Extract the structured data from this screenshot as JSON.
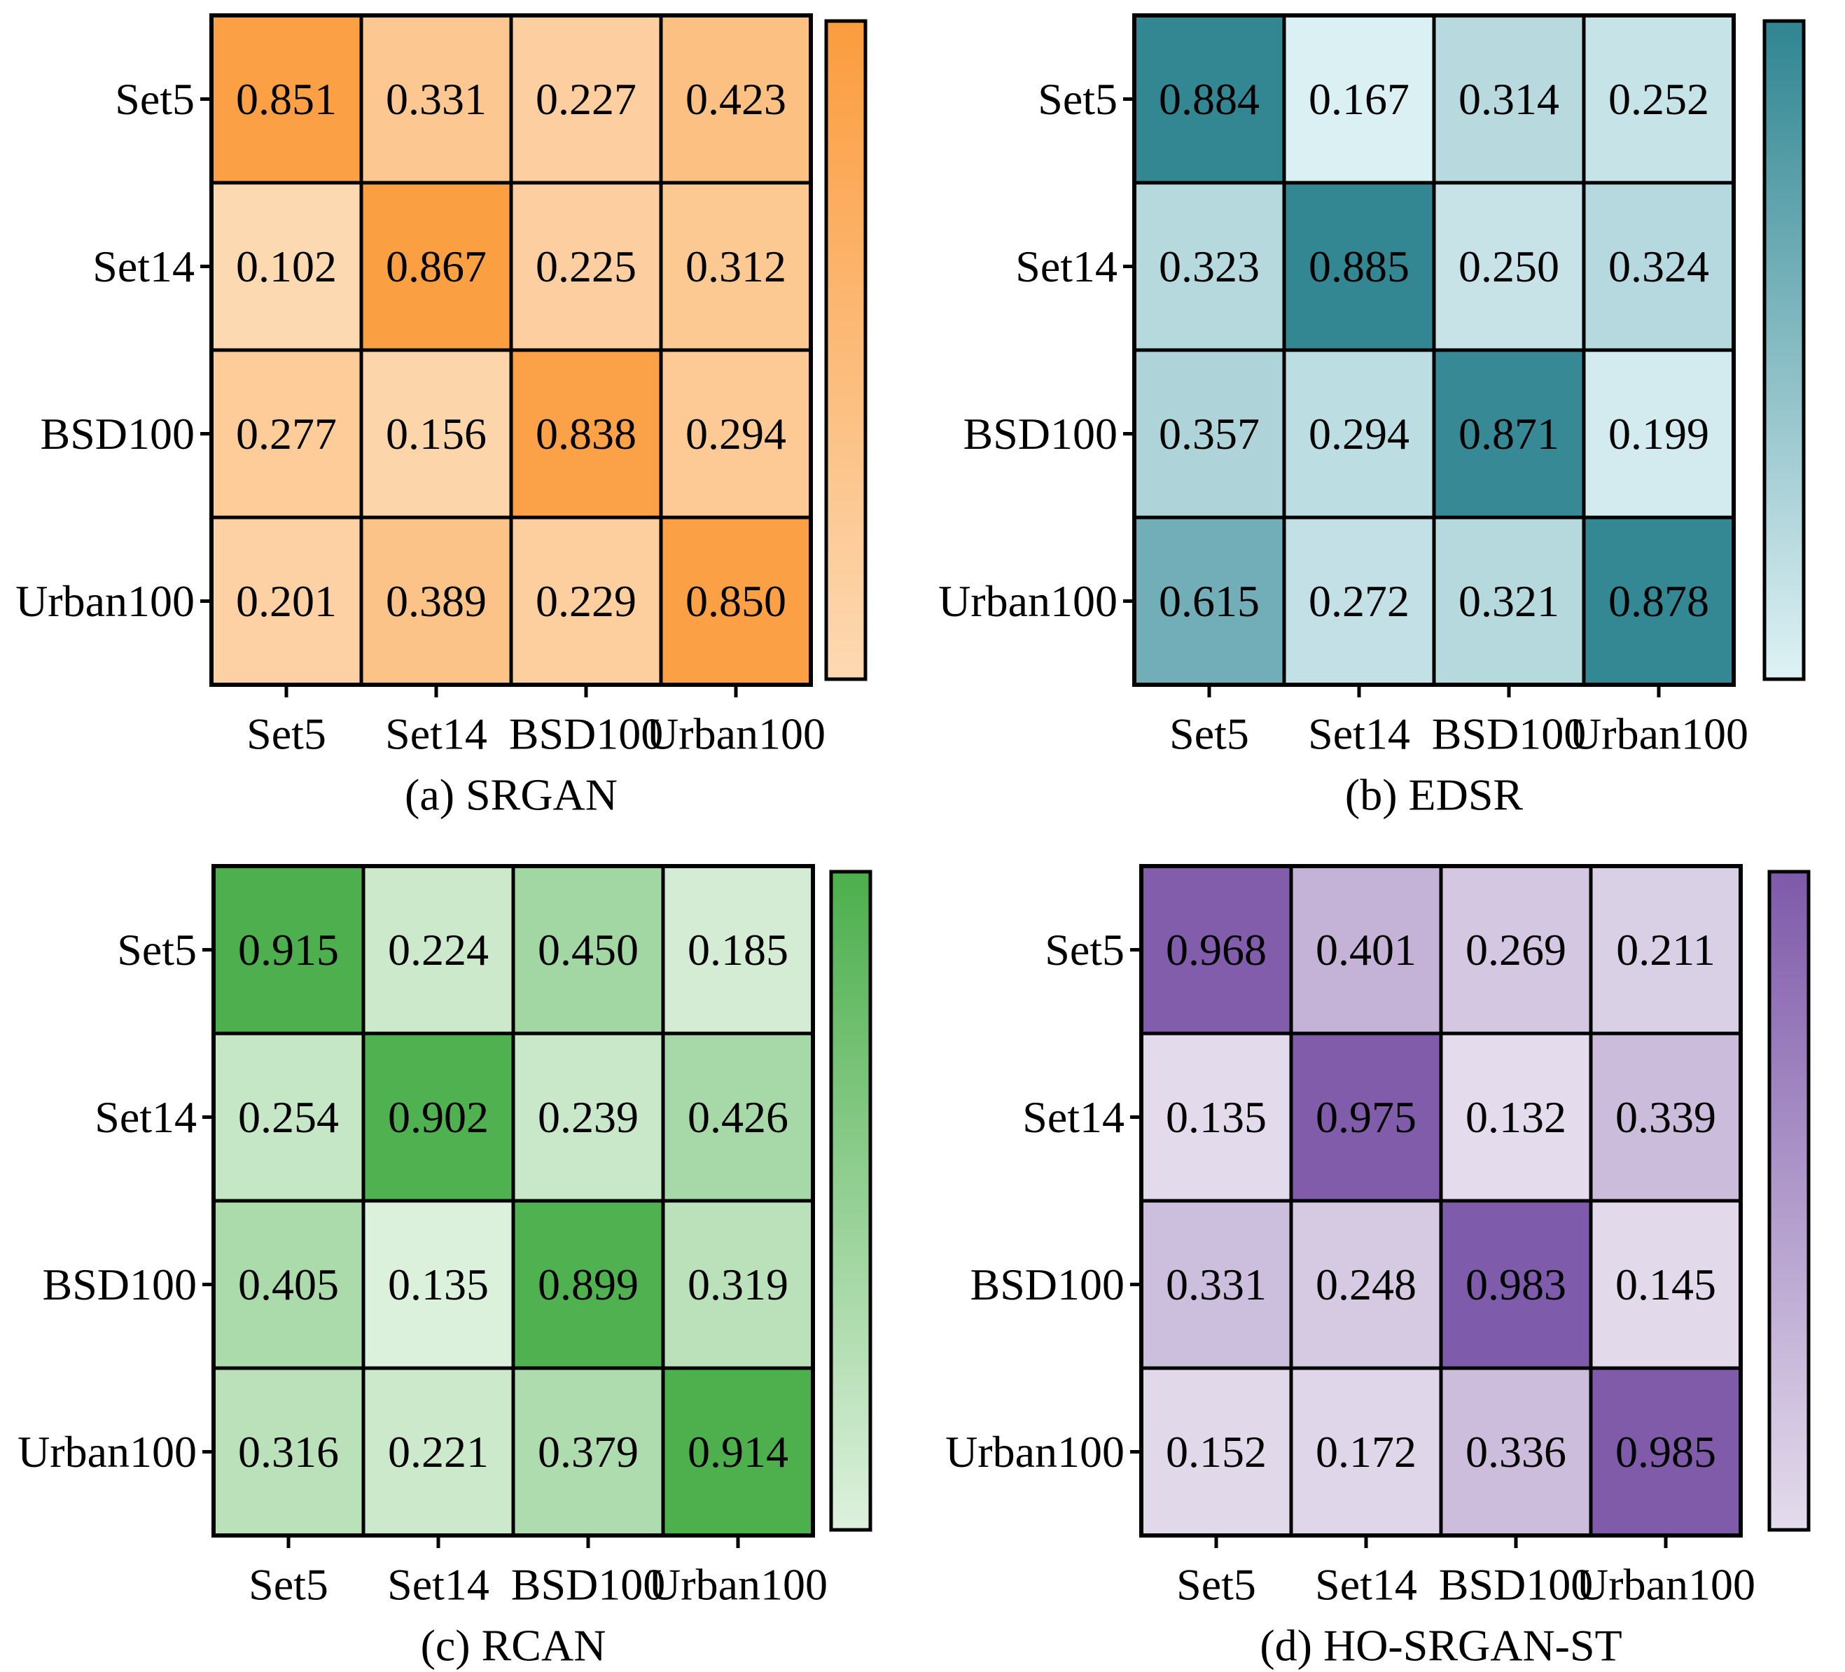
{
  "chart_data": [
    {
      "type": "heatmap",
      "caption": "(a) SRGAN",
      "rows": [
        "Set5",
        "Set14",
        "BSD100",
        "Urban100"
      ],
      "columns": [
        "Set5",
        "Set14",
        "BSD100",
        "Urban100"
      ],
      "values": [
        [
          0.851,
          0.331,
          0.227,
          0.423
        ],
        [
          0.102,
          0.867,
          0.225,
          0.312
        ],
        [
          0.277,
          0.156,
          0.838,
          0.294
        ],
        [
          0.201,
          0.389,
          0.229,
          0.85
        ]
      ],
      "color_low": "#fdd9b2",
      "color_high": "#fb9c3e",
      "value_range": [
        0.1,
        0.9
      ],
      "colorbar_ticks": []
    },
    {
      "type": "heatmap",
      "caption": "(b) EDSR",
      "rows": [
        "Set5",
        "Set14",
        "BSD100",
        "Urban100"
      ],
      "columns": [
        "Set5",
        "Set14",
        "BSD100",
        "Urban100"
      ],
      "values": [
        [
          0.884,
          0.167,
          0.314,
          0.252
        ],
        [
          0.323,
          0.885,
          0.25,
          0.324
        ],
        [
          0.357,
          0.294,
          0.871,
          0.199
        ],
        [
          0.615,
          0.272,
          0.321,
          0.878
        ]
      ],
      "color_low": "#def2f5",
      "color_high": "#2f8591",
      "value_range": [
        0.15,
        0.9
      ],
      "colorbar_ticks": []
    },
    {
      "type": "heatmap",
      "caption": "(c) RCAN",
      "rows": [
        "Set5",
        "Set14",
        "BSD100",
        "Urban100"
      ],
      "columns": [
        "Set5",
        "Set14",
        "BSD100",
        "Urban100"
      ],
      "values": [
        [
          0.915,
          0.224,
          0.45,
          0.185
        ],
        [
          0.254,
          0.902,
          0.239,
          0.426
        ],
        [
          0.405,
          0.135,
          0.899,
          0.319
        ],
        [
          0.316,
          0.221,
          0.379,
          0.914
        ]
      ],
      "color_low": "#ddf1dd",
      "color_high": "#4caf4c",
      "value_range": [
        0.13,
        0.92
      ],
      "colorbar_ticks": []
    },
    {
      "type": "heatmap",
      "caption": "(d) HO-SRGAN-ST",
      "rows": [
        "Set5",
        "Set14",
        "BSD100",
        "Urban100"
      ],
      "columns": [
        "Set5",
        "Set14",
        "BSD100",
        "Urban100"
      ],
      "values": [
        [
          0.968,
          0.401,
          0.269,
          0.211
        ],
        [
          0.135,
          0.975,
          0.132,
          0.339
        ],
        [
          0.331,
          0.248,
          0.983,
          0.145
        ],
        [
          0.152,
          0.172,
          0.336,
          0.985
        ]
      ],
      "color_low": "#e4dcec",
      "color_high": "#7e5aaa",
      "value_range": [
        0.13,
        0.99
      ],
      "colorbar_ticks": []
    }
  ]
}
